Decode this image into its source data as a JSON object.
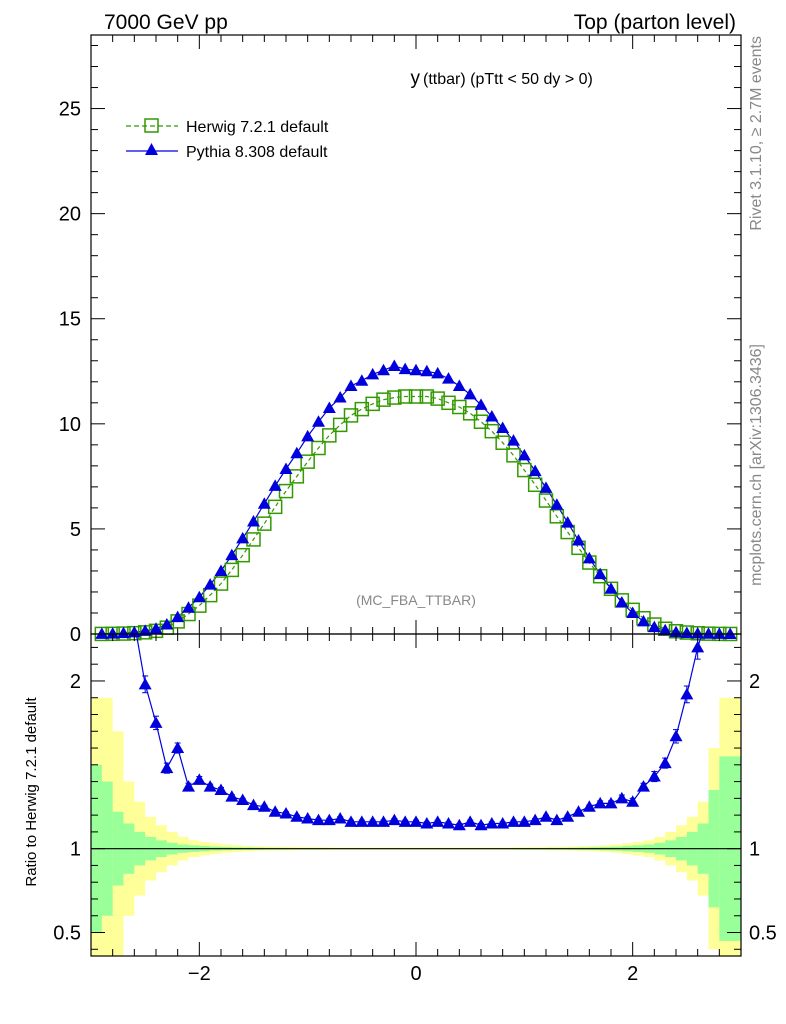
{
  "header": {
    "left": "7000 GeV pp",
    "right": "Top (parton level)"
  },
  "side_labels": {
    "rivet": "Rivet 3.1.10, ≥ 2.7M events",
    "mcplots": "mcplots.cern.ch [arXiv:1306.3436]"
  },
  "chart_data": {
    "type": "line",
    "title": "y (ttbar) (pTtt < 50 dy > 0)",
    "title_main": "y",
    "title_sub": "(ttbar) (pTtt < 50 dy > 0)",
    "watermark": "(MC_FBA_TTBAR)",
    "xlim": [
      -3.0,
      3.0
    ],
    "ylim": [
      0,
      28.5
    ],
    "yticks": [
      0,
      5,
      10,
      15,
      20,
      25
    ],
    "xticks": [
      -2,
      0,
      2
    ],
    "xtick_labels": [
      "−2",
      "0",
      "2"
    ],
    "legend": [
      {
        "name": "Herwig 7.2.1 default",
        "color": "#339900",
        "marker": "open-square",
        "style": "dashed"
      },
      {
        "name": "Pythia 8.308 default",
        "color": "#0000dd",
        "marker": "filled-triangle",
        "style": "solid"
      }
    ],
    "x": [
      -2.9,
      -2.8,
      -2.7,
      -2.6,
      -2.5,
      -2.4,
      -2.3,
      -2.2,
      -2.1,
      -2.0,
      -1.9,
      -1.8,
      -1.7,
      -1.6,
      -1.5,
      -1.4,
      -1.3,
      -1.2,
      -1.1,
      -1.0,
      -0.9,
      -0.8,
      -0.7,
      -0.6,
      -0.5,
      -0.4,
      -0.3,
      -0.2,
      -0.1,
      0.0,
      0.1,
      0.2,
      0.3,
      0.4,
      0.5,
      0.6,
      0.7,
      0.8,
      0.9,
      1.0,
      1.1,
      1.2,
      1.3,
      1.4,
      1.5,
      1.6,
      1.7,
      1.8,
      1.9,
      2.0,
      2.1,
      2.2,
      2.3,
      2.4,
      2.5,
      2.6,
      2.7,
      2.8,
      2.9
    ],
    "series": [
      {
        "name": "Herwig 7.2.1 default",
        "values": [
          0.003,
          0.01,
          0.02,
          0.04,
          0.08,
          0.15,
          0.3,
          0.6,
          0.95,
          1.35,
          1.85,
          2.4,
          3.05,
          3.75,
          4.5,
          5.25,
          6.05,
          6.8,
          7.5,
          8.2,
          8.85,
          9.45,
          9.95,
          10.4,
          10.7,
          10.95,
          11.15,
          11.25,
          11.3,
          11.3,
          11.3,
          11.2,
          11.0,
          10.8,
          10.5,
          10.1,
          9.65,
          9.1,
          8.5,
          7.8,
          7.1,
          6.35,
          5.6,
          4.85,
          4.1,
          3.4,
          2.75,
          2.15,
          1.6,
          1.15,
          0.75,
          0.45,
          0.25,
          0.13,
          0.07,
          0.035,
          0.015,
          0.006,
          0.002
        ]
      },
      {
        "name": "Pythia 8.308 default",
        "values": [
          0.006,
          0.018,
          0.04,
          0.08,
          0.15,
          0.25,
          0.45,
          0.8,
          1.25,
          1.75,
          2.35,
          3.0,
          3.75,
          4.55,
          5.35,
          6.2,
          7.05,
          7.85,
          8.6,
          9.4,
          10.1,
          10.75,
          11.25,
          11.8,
          12.05,
          12.35,
          12.55,
          12.75,
          12.6,
          12.55,
          12.5,
          12.4,
          12.15,
          11.8,
          11.4,
          10.9,
          10.35,
          9.8,
          9.2,
          8.5,
          7.75,
          6.95,
          6.15,
          5.3,
          4.45,
          3.6,
          2.85,
          2.15,
          1.5,
          1.0,
          0.6,
          0.33,
          0.18,
          0.09,
          0.045,
          0.022,
          0.01,
          0.004,
          0.002
        ]
      }
    ],
    "ratio": {
      "ylabel": "Ratio to Herwig 7.2.1 default",
      "ylim": [
        0.36,
        2.28
      ],
      "yticks": [
        0.5,
        1,
        2
      ],
      "ytick_labels": [
        "0.5",
        "1",
        "2"
      ],
      "ref_line": 1.0,
      "pythia_ratio": [
        null,
        null,
        2.45,
        2.35,
        1.98,
        1.75,
        1.48,
        1.6,
        1.37,
        1.41,
        1.37,
        1.35,
        1.31,
        1.29,
        1.26,
        1.25,
        1.22,
        1.21,
        1.19,
        1.18,
        1.17,
        1.17,
        1.18,
        1.16,
        1.16,
        1.16,
        1.16,
        1.17,
        1.16,
        1.16,
        1.15,
        1.16,
        1.15,
        1.14,
        1.16,
        1.14,
        1.15,
        1.15,
        1.16,
        1.16,
        1.17,
        1.19,
        1.17,
        1.19,
        1.22,
        1.25,
        1.27,
        1.27,
        1.3,
        1.28,
        1.37,
        1.43,
        1.51,
        1.67,
        1.92,
        2.2,
        2.4,
        null,
        null
      ],
      "pythia_err": [
        0,
        0,
        0.08,
        0.06,
        0.05,
        0.04,
        0.03,
        0.03,
        0.02,
        0.02,
        0.015,
        0.015,
        0.012,
        0.01,
        0.01,
        0.01,
        0.01,
        0.01,
        0.01,
        0.01,
        0.01,
        0.01,
        0.01,
        0.01,
        0.01,
        0.01,
        0.01,
        0.01,
        0.01,
        0.01,
        0.01,
        0.01,
        0.01,
        0.01,
        0.01,
        0.01,
        0.01,
        0.01,
        0.01,
        0.01,
        0.01,
        0.01,
        0.01,
        0.01,
        0.01,
        0.01,
        0.015,
        0.015,
        0.02,
        0.02,
        0.02,
        0.03,
        0.03,
        0.04,
        0.05,
        0.07,
        0.09,
        0,
        0
      ],
      "band_inner_halfwidth": [
        0.5,
        0.4,
        0.22,
        0.15,
        0.1,
        0.07,
        0.05,
        0.035,
        0.025,
        0.02,
        0.016,
        0.012,
        0.01,
        0.008,
        0.007,
        0.006,
        0.005,
        0.005,
        0.004,
        0.004,
        0.004,
        0.003,
        0.003,
        0.003,
        0.003,
        0.003,
        0.003,
        0.003,
        0.003,
        0.003,
        0.003,
        0.003,
        0.003,
        0.003,
        0.003,
        0.003,
        0.003,
        0.003,
        0.003,
        0.004,
        0.004,
        0.004,
        0.005,
        0.005,
        0.006,
        0.007,
        0.008,
        0.01,
        0.012,
        0.016,
        0.02,
        0.025,
        0.035,
        0.05,
        0.07,
        0.1,
        0.15,
        0.35,
        0.55
      ],
      "band_outer_halfwidth": [
        0.9,
        0.7,
        0.4,
        0.28,
        0.19,
        0.14,
        0.1,
        0.07,
        0.05,
        0.04,
        0.032,
        0.025,
        0.02,
        0.016,
        0.014,
        0.012,
        0.01,
        0.01,
        0.008,
        0.008,
        0.008,
        0.006,
        0.006,
        0.006,
        0.006,
        0.006,
        0.006,
        0.006,
        0.006,
        0.006,
        0.006,
        0.006,
        0.006,
        0.006,
        0.006,
        0.006,
        0.006,
        0.006,
        0.006,
        0.008,
        0.008,
        0.008,
        0.01,
        0.01,
        0.012,
        0.014,
        0.016,
        0.02,
        0.025,
        0.032,
        0.04,
        0.05,
        0.07,
        0.1,
        0.14,
        0.19,
        0.28,
        0.6,
        0.9
      ],
      "band_inner_color": "#99ff99",
      "band_outer_color": "#ffff99"
    }
  }
}
